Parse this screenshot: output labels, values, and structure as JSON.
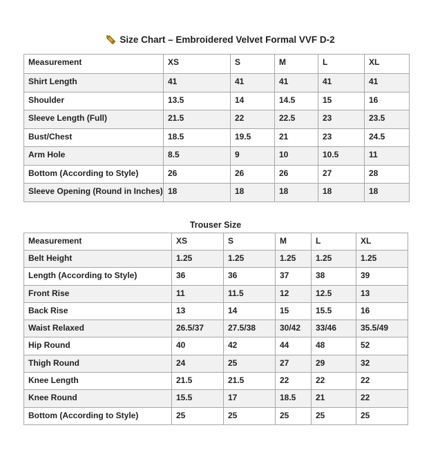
{
  "header": {
    "icon": "pencil-icon",
    "title": "Size Chart – Embroidered Velvet Formal VVF D-2"
  },
  "shirt_table": {
    "columns": [
      "Measurement",
      "XS",
      "S",
      "M",
      "L",
      "XL"
    ],
    "rows": [
      {
        "label": "Shirt Length",
        "values": [
          "41",
          "41",
          "41",
          "41",
          "41"
        ]
      },
      {
        "label": "Shoulder",
        "values": [
          "13.5",
          "14",
          "14.5",
          "15",
          "16"
        ]
      },
      {
        "label": "Sleeve Length (Full)",
        "values": [
          "21.5",
          "22",
          "22.5",
          "23",
          "23.5"
        ]
      },
      {
        "label": "Bust/Chest",
        "values": [
          "18.5",
          "19.5",
          "21",
          "23",
          "24.5"
        ]
      },
      {
        "label": "Arm Hole",
        "values": [
          "8.5",
          "9",
          "10",
          "10.5",
          "11"
        ]
      },
      {
        "label": "Bottom (According to Style)",
        "values": [
          "26",
          "26",
          "26",
          "27",
          "28"
        ]
      },
      {
        "label": "Sleeve Opening (Round in Inches)",
        "values": [
          "18",
          "18",
          "18",
          "18",
          "18"
        ]
      }
    ]
  },
  "trouser_table": {
    "title": "Trouser Size",
    "columns": [
      "Measurement",
      "XS",
      "S",
      "M",
      "L",
      "XL"
    ],
    "rows": [
      {
        "label": "Belt Height",
        "values": [
          "1.25",
          "1.25",
          "1.25",
          "1.25",
          "1.25"
        ]
      },
      {
        "label": "Length (According to Style)",
        "values": [
          "36",
          "36",
          "37",
          "38",
          "39"
        ]
      },
      {
        "label": "Front Rise",
        "values": [
          "11",
          "11.5",
          "12",
          "12.5",
          "13"
        ]
      },
      {
        "label": "Back Rise",
        "values": [
          "13",
          "14",
          "15",
          "15.5",
          "16"
        ]
      },
      {
        "label": "Waist Relaxed",
        "values": [
          "26.5/37",
          "27.5/38",
          "30/42",
          "33/46",
          "35.5/49"
        ]
      },
      {
        "label": "Hip Round",
        "values": [
          "40",
          "42",
          "44",
          "48",
          "52"
        ]
      },
      {
        "label": "Thigh Round",
        "values": [
          "24",
          "25",
          "27",
          "29",
          "32"
        ]
      },
      {
        "label": "Knee Length",
        "values": [
          "21.5",
          "21.5",
          "22",
          "22",
          "22"
        ]
      },
      {
        "label": "Knee Round",
        "values": [
          "15.5",
          "17",
          "18.5",
          "21",
          "22"
        ]
      },
      {
        "label": "Bottom (According to Style)",
        "values": [
          "25",
          "25",
          "25",
          "25",
          "25"
        ]
      }
    ]
  },
  "colors": {
    "text": "#212121",
    "border": "#a6a6a6",
    "row_stripe": "#f1f1f1",
    "pencil_gold": "#e2a52e",
    "pencil_outline": "#6b5200"
  }
}
